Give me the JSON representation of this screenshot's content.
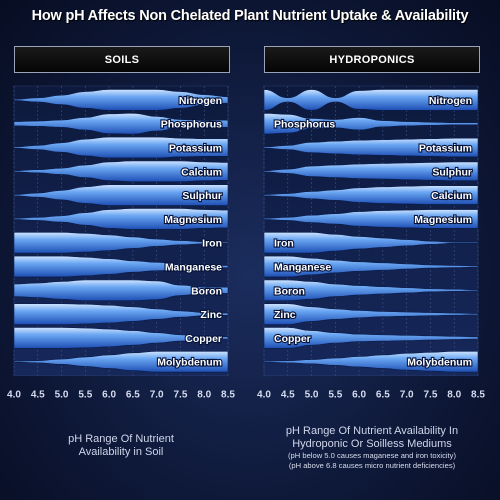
{
  "title": "How pH Affects Non Chelated Plant Nutrient Uptake & Availability",
  "chart_data": [
    {
      "type": "area",
      "panel_label": "SOILS",
      "x_ticks": [
        "4.0",
        "4.5",
        "5.0",
        "5.5",
        "6.0",
        "6.5",
        "7.0",
        "7.5",
        "8.0",
        "8.5"
      ],
      "xlim": [
        4.0,
        8.5
      ],
      "caption": [
        "pH Range Of Nutrient",
        "Availability  in Soil"
      ],
      "series": [
        {
          "name": "Nitrogen",
          "w": [
            0.05,
            0.2,
            0.45,
            0.8,
            1,
            1,
            1,
            0.8,
            0.5,
            0.3
          ]
        },
        {
          "name": "Phosphorus",
          "w": [
            0.2,
            0.25,
            0.35,
            0.6,
            0.95,
            1,
            0.7,
            0.4,
            0.3,
            0.35
          ]
        },
        {
          "name": "Potassium",
          "w": [
            0.05,
            0.2,
            0.45,
            0.8,
            1,
            1,
            1,
            0.9,
            0.85,
            0.85
          ]
        },
        {
          "name": "Calcium",
          "w": [
            0.05,
            0.15,
            0.3,
            0.6,
            0.9,
            1,
            1,
            1,
            0.9,
            0.85
          ]
        },
        {
          "name": "Sulphur",
          "w": [
            0.05,
            0.2,
            0.45,
            0.8,
            1,
            1,
            1,
            1,
            1,
            1
          ]
        },
        {
          "name": "Magnesium",
          "w": [
            0.05,
            0.15,
            0.3,
            0.6,
            0.9,
            1,
            1,
            1,
            0.9,
            0.85
          ]
        },
        {
          "name": "Iron",
          "w": [
            1,
            1,
            1,
            0.9,
            0.75,
            0.55,
            0.35,
            0.2,
            0.1,
            0.05
          ]
        },
        {
          "name": "Manganese",
          "w": [
            1,
            1,
            1,
            0.9,
            0.75,
            0.55,
            0.4,
            0.25,
            0.15,
            0.1
          ]
        },
        {
          "name": "Boron",
          "w": [
            0.6,
            0.7,
            0.85,
            1,
            1,
            1,
            0.9,
            0.5,
            0.3,
            0.3
          ]
        },
        {
          "name": "Zinc",
          "w": [
            1,
            1,
            1,
            0.95,
            0.85,
            0.7,
            0.5,
            0.3,
            0.15,
            0.1
          ]
        },
        {
          "name": "Copper",
          "w": [
            1,
            1,
            1,
            0.95,
            0.85,
            0.7,
            0.5,
            0.3,
            0.15,
            0.1
          ]
        },
        {
          "name": "Molybdenum",
          "w": [
            0.05,
            0.1,
            0.25,
            0.45,
            0.65,
            0.85,
            1,
            1,
            1,
            1
          ]
        }
      ]
    },
    {
      "type": "area",
      "panel_label": "HYDROPONICS",
      "x_ticks": [
        "4.0",
        "4.5",
        "5.0",
        "5.5",
        "6.0",
        "6.5",
        "7.0",
        "7.5",
        "8.0",
        "8.5"
      ],
      "xlim": [
        4.0,
        8.5
      ],
      "caption": [
        "pH Range Of Nutrient Availability In",
        "Hydroponic Or Soilless Mediums",
        "(pH below 5.0 causes maganese and iron toxicity)",
        "(pH above 6.8 causes micro nutrient deficiencies)"
      ],
      "series": [
        {
          "name": "Nitrogen",
          "w": [
            1,
            0.2,
            1,
            0.2,
            0.9,
            1,
            1,
            1,
            1,
            1
          ]
        },
        {
          "name": "Phosphorus",
          "w": [
            1,
            0.9,
            0.5,
            0.4,
            0.6,
            0.3,
            0.2,
            0.15,
            0.1,
            0.1
          ]
        },
        {
          "name": "Potassium",
          "w": [
            0.05,
            0.2,
            0.5,
            0.6,
            0.7,
            0.75,
            0.8,
            0.85,
            0.9,
            0.9
          ]
        },
        {
          "name": "Sulphur",
          "w": [
            0.05,
            0.2,
            0.5,
            0.6,
            0.7,
            0.75,
            0.8,
            0.85,
            0.9,
            0.9
          ]
        },
        {
          "name": "Calcium",
          "w": [
            0.05,
            0.15,
            0.35,
            0.5,
            0.7,
            0.8,
            0.85,
            0.9,
            0.9,
            0.9
          ]
        },
        {
          "name": "Magnesium",
          "w": [
            0.05,
            0.15,
            0.35,
            0.5,
            0.7,
            0.8,
            0.85,
            0.9,
            0.9,
            0.9
          ]
        },
        {
          "name": "Iron",
          "w": [
            1,
            1,
            1,
            0.8,
            0.6,
            0.45,
            0.3,
            0.15,
            0.05,
            0.05
          ]
        },
        {
          "name": "Manganese",
          "w": [
            1,
            1,
            0.8,
            0.6,
            0.45,
            0.35,
            0.25,
            0.15,
            0.1,
            0.05
          ]
        },
        {
          "name": "Boron",
          "w": [
            1,
            1,
            0.85,
            0.6,
            0.45,
            0.35,
            0.25,
            0.15,
            0.1,
            0.05
          ]
        },
        {
          "name": "Zinc",
          "w": [
            1,
            1,
            0.7,
            0.5,
            0.35,
            0.25,
            0.2,
            0.15,
            0.1,
            0.05
          ]
        },
        {
          "name": "Copper",
          "w": [
            1,
            1,
            0.7,
            0.5,
            0.35,
            0.3,
            0.25,
            0.2,
            0.15,
            0.1
          ]
        },
        {
          "name": "Molybdenum",
          "w": [
            0.05,
            0.1,
            0.2,
            0.35,
            0.5,
            0.65,
            0.8,
            0.9,
            1,
            1
          ]
        }
      ]
    }
  ]
}
